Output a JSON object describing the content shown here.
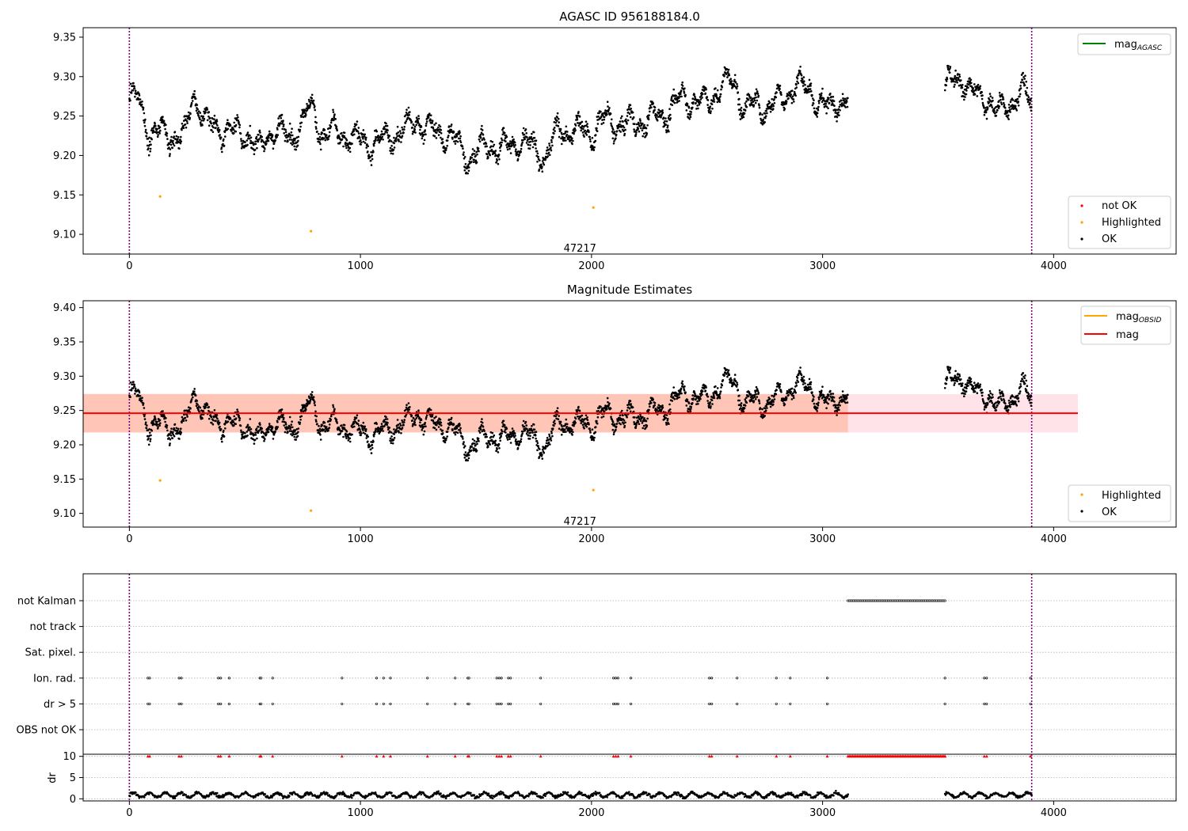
{
  "colors": {
    "ok": "#000000",
    "not_ok": "#ff0000",
    "highlighted": "#ffa500",
    "mag_agasc": "#008000",
    "mag_obsid": "#ffa500",
    "mag": "#ff0000",
    "obs_boundary": "#800080",
    "band_mag": "#ffc0cb",
    "band_obsid": "#ffa07a"
  },
  "chart_data": [
    {
      "id": "top",
      "type": "scatter",
      "title": "AGASC ID 956188184.0",
      "xlim": [
        -200,
        4530
      ],
      "ylim": [
        9.075,
        9.362
      ],
      "xticks": [
        0,
        1000,
        2000,
        3000,
        4000
      ],
      "yticks": [
        9.1,
        9.15,
        9.2,
        9.25,
        9.3,
        9.35
      ],
      "ytick_labels": [
        "9.10",
        "9.15",
        "9.20",
        "9.25",
        "9.30",
        "9.35"
      ],
      "obs_boundaries": [
        0,
        3905
      ],
      "obsid_annotation": {
        "text": "47217",
        "x": 1950,
        "y": 9.083
      },
      "legend_lines": [
        {
          "label": "mag",
          "subscript": "AGASC",
          "color_key": "mag_agasc"
        }
      ],
      "legend_points": [
        {
          "label": "not OK",
          "color_key": "not_ok"
        },
        {
          "label": "Highlighted",
          "color_key": "highlighted"
        },
        {
          "label": "OK",
          "color_key": "ok"
        }
      ],
      "series": [
        {
          "name": "OK",
          "segments": [
            [
              0,
              3110
            ],
            [
              3530,
              3905
            ]
          ]
        },
        {
          "name": "Highlighted",
          "points": [
            [
              133,
              9.148
            ],
            [
              786,
              9.104
            ],
            [
              2008,
              9.134
            ]
          ]
        },
        {
          "name": "not OK",
          "points": []
        }
      ]
    },
    {
      "id": "middle",
      "type": "scatter",
      "title": "Magnitude Estimates",
      "xlim": [
        -200,
        4530
      ],
      "ylim": [
        9.08,
        9.41
      ],
      "xticks": [
        0,
        1000,
        2000,
        3000,
        4000
      ],
      "yticks": [
        9.1,
        9.15,
        9.2,
        9.25,
        9.3,
        9.35,
        9.4
      ],
      "ytick_labels": [
        "9.10",
        "9.15",
        "9.20",
        "9.25",
        "9.30",
        "9.35",
        "9.40"
      ],
      "obs_boundaries": [
        0,
        3905
      ],
      "obsid_annotation": {
        "text": "47217",
        "x": 1950,
        "y": 9.089
      },
      "mag_line": {
        "value": 9.246,
        "band": [
          9.218,
          9.274
        ],
        "x_range": [
          -200,
          4105
        ]
      },
      "mag_obsid_band": {
        "band": [
          9.218,
          9.274
        ],
        "x_range": [
          -200,
          2300
        ]
      },
      "legend_lines": [
        {
          "label": "mag",
          "subscript": "OBSID",
          "color_key": "mag_obsid"
        },
        {
          "label": "mag",
          "subscript": "",
          "color_key": "mag"
        }
      ],
      "legend_points": [
        {
          "label": "Highlighted",
          "color_key": "highlighted"
        },
        {
          "label": "OK",
          "color_key": "ok"
        }
      ],
      "series": [
        {
          "name": "OK",
          "segments": [
            [
              0,
              3110
            ],
            [
              3530,
              3905
            ]
          ]
        },
        {
          "name": "Highlighted",
          "points": [
            [
              133,
              9.148
            ],
            [
              786,
              9.104
            ],
            [
              2008,
              9.134
            ]
          ]
        }
      ]
    },
    {
      "id": "flags",
      "type": "scatter",
      "xlim": [
        -200,
        4530
      ],
      "xticks": [
        0,
        1000,
        2000,
        3000,
        4000
      ],
      "obs_boundaries": [
        0,
        3905
      ],
      "categories": [
        "not Kalman",
        "not track",
        "Sat. pixel.",
        "Ion. rad.",
        "dr > 5",
        "OBS not OK"
      ],
      "flag_rows": {
        "not Kalman": {
          "range": [
            3110,
            3530
          ]
        },
        "Ion. rad.": {
          "points": [
            80,
            88,
            215,
            225,
            385,
            395,
            432,
            565,
            570,
            620,
            920,
            1070,
            1100,
            1130,
            1290,
            1410,
            1465,
            1470,
            1590,
            1600,
            1610,
            1640,
            1650,
            1780,
            2095,
            2105,
            2115,
            2170,
            2510,
            2520,
            2630,
            2800,
            2860,
            3020,
            3530,
            3700,
            3710,
            3900
          ]
        },
        "dr > 5": {
          "points": [
            80,
            88,
            215,
            225,
            385,
            395,
            432,
            565,
            570,
            620,
            920,
            1070,
            1100,
            1130,
            1290,
            1410,
            1465,
            1470,
            1590,
            1600,
            1610,
            1640,
            1650,
            1780,
            2095,
            2105,
            2115,
            2170,
            2510,
            2520,
            2630,
            2800,
            2860,
            3020,
            3530,
            3700,
            3710,
            3900
          ]
        }
      }
    },
    {
      "id": "dr",
      "type": "scatter",
      "ylabel": "dr",
      "xlim": [
        -200,
        4530
      ],
      "ylim": [
        -0.5,
        10.5
      ],
      "xticks": [
        0,
        1000,
        2000,
        3000,
        4000
      ],
      "yticks": [
        0,
        5,
        10
      ],
      "obs_boundaries": [
        0,
        3905
      ],
      "segments": [
        [
          0,
          3110
        ],
        [
          3530,
          3905
        ]
      ],
      "clipped_range": [
        3110,
        3530
      ],
      "clipped_points": [
        80,
        88,
        215,
        225,
        385,
        395,
        432,
        565,
        570,
        620,
        920,
        1070,
        1100,
        1130,
        1290,
        1410,
        1465,
        1470,
        1590,
        1600,
        1610,
        1640,
        1650,
        1780,
        2095,
        2105,
        2115,
        2170,
        2510,
        2520,
        2630,
        2800,
        2860,
        3020,
        3530,
        3700,
        3710,
        3900
      ]
    }
  ]
}
